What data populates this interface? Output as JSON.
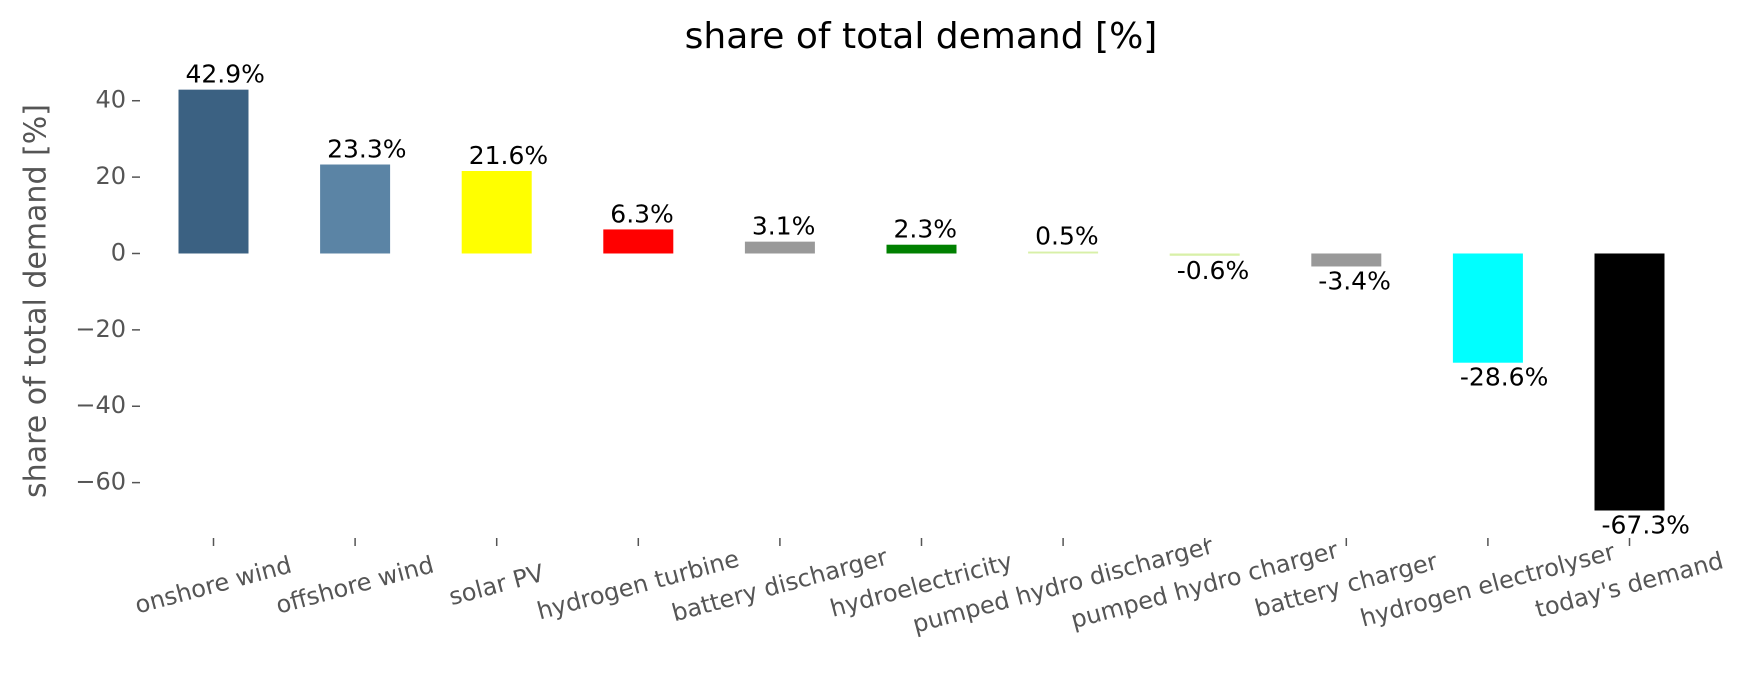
{
  "chart_data": {
    "type": "bar",
    "title": "share of total demand [%]",
    "y_label": "share of total demand [%]",
    "categories": [
      "onshore wind",
      "offshore wind",
      "solar PV",
      "hydrogen turbine",
      "battery discharger",
      "hydroelectricity",
      "pumped hydro discharger",
      "pumped hydro charger",
      "battery charger",
      "hydrogen electrolyser",
      "today's demand"
    ],
    "values": [
      42.9,
      23.3,
      21.6,
      6.3,
      3.1,
      2.3,
      0.5,
      -0.6,
      -3.4,
      -28.6,
      -67.3
    ],
    "value_labels": [
      "42.9%",
      "23.3%",
      "21.6%",
      "6.3%",
      "3.1%",
      "2.3%",
      "0.5%",
      "-0.6%",
      "-3.4%",
      "-28.6%",
      "-67.3%"
    ],
    "colors": [
      "#3b6182",
      "#5b84a5",
      "#ffff00",
      "#ff0000",
      "#999999",
      "#008000",
      "#d8f0a8",
      "#d8f0a8",
      "#999999",
      "#00ffff",
      "#000000"
    ],
    "ylim": [
      -74.5,
      47
    ],
    "yticks": [
      {
        "value": -60,
        "label": "−60"
      },
      {
        "value": -40,
        "label": "−40"
      },
      {
        "value": -20,
        "label": "−20"
      },
      0,
      20,
      40
    ]
  }
}
